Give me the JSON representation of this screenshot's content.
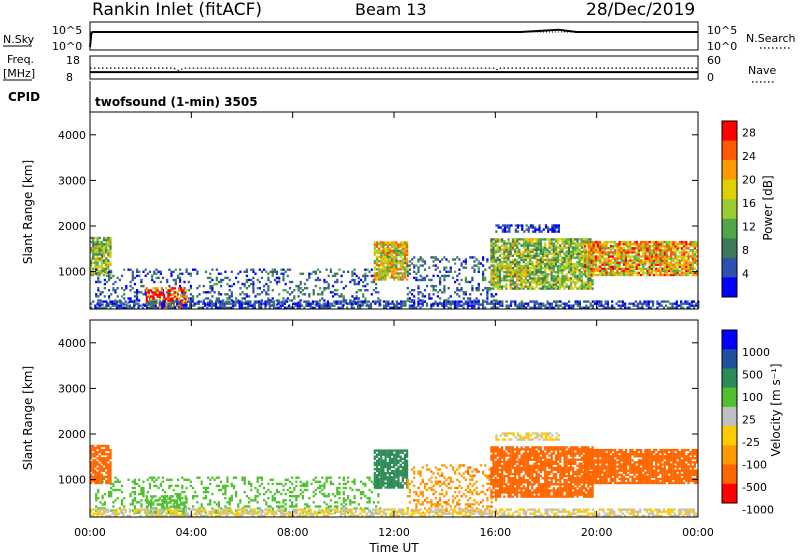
{
  "header": {
    "station": "Rankin Inlet (fitACF)",
    "beam": "Beam 13",
    "date": "28/Dec/2019"
  },
  "top_panels": {
    "nsky_label": "N.Sky",
    "nsky_ticks": [
      "10^5",
      "10^0"
    ],
    "nsearch_label": "N.Search",
    "freq_label": "Freq.",
    "freq_unit": "[MHz]",
    "freq_ticks": [
      "18",
      "8"
    ],
    "nave_label": "Nave",
    "nave_ticks": [
      "60",
      "0"
    ],
    "cpid_label": "CPID",
    "cpid_text": "twofsound (1-min) 3505"
  },
  "colors": {
    "power": [
      "#0000ff",
      "#3050b0",
      "#3d7a5a",
      "#4ea84a",
      "#9acd32",
      "#e0d000",
      "#ff9900",
      "#ff5a00",
      "#ff0000"
    ],
    "velocity": [
      "#ff0000",
      "#ff6600",
      "#ff9900",
      "#ffcc00",
      "#c0c0c0",
      "#50c030",
      "#2e8b57",
      "#2050a0",
      "#0000ff"
    ],
    "ground_scatter": "#a0a0a0"
  },
  "chart_data": [
    {
      "type": "line",
      "title": "N.Sky / N.Search",
      "xlabel": "Time UT",
      "x_ticks": [
        "00:00",
        "04:00",
        "08:00",
        "12:00",
        "16:00",
        "20:00",
        "00:00"
      ],
      "y_scale": "log",
      "ylim": [
        1,
        100000
      ],
      "series": [
        {
          "name": "N.Sky",
          "style": "solid",
          "x": [
            0,
            0.05,
            0.1,
            2,
            6,
            10,
            14,
            17,
            18.5,
            19.2,
            20,
            24
          ],
          "y": [
            1,
            1000,
            2500,
            2500,
            2600,
            2500,
            2600,
            2600,
            8000,
            2600,
            2500,
            2600
          ]
        },
        {
          "name": "N.Search",
          "style": "dotted",
          "x": [
            0,
            24
          ],
          "y": [
            2500,
            2600
          ]
        }
      ]
    },
    {
      "type": "line",
      "title": "Freq. / Nave",
      "xlabel": "Time UT",
      "x_ticks": [
        "00:00",
        "04:00",
        "08:00",
        "12:00",
        "16:00",
        "20:00",
        "00:00"
      ],
      "ylim_left": [
        8,
        18
      ],
      "ylim_right": [
        0,
        60
      ],
      "series": [
        {
          "name": "Freq.",
          "style": "solid",
          "axis": "left",
          "x": [
            0,
            24
          ],
          "y": [
            10.6,
            10.6
          ]
        },
        {
          "name": "Nave",
          "style": "dotted",
          "axis": "right",
          "x": [
            0,
            3.3,
            3.5,
            3.7,
            16,
            16.1,
            16.2,
            24
          ],
          "y": [
            28,
            28,
            20,
            28,
            28,
            22,
            28,
            28
          ]
        }
      ]
    },
    {
      "type": "heatmap",
      "title": "Power",
      "xlabel": "",
      "ylabel": "Slant Range [km]",
      "x_ticks": [
        "00:00",
        "04:00",
        "08:00",
        "12:00",
        "16:00",
        "20:00",
        "00:00"
      ],
      "y_ticks": [
        1000,
        2000,
        3000,
        4000
      ],
      "xlim": [
        0,
        24
      ],
      "ylim": [
        180,
        4500
      ],
      "colorbar": {
        "label": "Power [dB]",
        "ticks": [
          4,
          8,
          12,
          16,
          20,
          24,
          28
        ],
        "range": [
          0,
          30
        ]
      },
      "regions": [
        {
          "t0": 0.0,
          "t1": 0.8,
          "r0": 900,
          "r1": 1750,
          "val": 14,
          "density": 0.8
        },
        {
          "t0": 0.2,
          "t1": 11.5,
          "r0": 250,
          "r1": 1050,
          "val": 6,
          "density": 0.25
        },
        {
          "t0": 2.2,
          "t1": 3.8,
          "r0": 200,
          "r1": 650,
          "val": 26,
          "density": 0.6
        },
        {
          "t0": 11.2,
          "t1": 12.5,
          "r0": 800,
          "r1": 1650,
          "val": 18,
          "density": 0.85
        },
        {
          "t0": 12.5,
          "t1": 16.0,
          "r0": 250,
          "r1": 1300,
          "val": 6,
          "density": 0.25
        },
        {
          "t0": 15.8,
          "t1": 19.8,
          "r0": 600,
          "r1": 1700,
          "val": 14,
          "density": 0.8
        },
        {
          "t0": 16.0,
          "t1": 18.5,
          "r0": 1850,
          "r1": 2000,
          "val": 4,
          "density": 0.6
        },
        {
          "t0": 19.5,
          "t1": 24.0,
          "r0": 900,
          "r1": 1650,
          "val": 20,
          "density": 0.85
        },
        {
          "t0": 0.0,
          "t1": 24.0,
          "r0": 180,
          "r1": 330,
          "val": 5,
          "density": 0.6
        }
      ]
    },
    {
      "type": "heatmap",
      "title": "Velocity",
      "xlabel": "Time UT",
      "ylabel": "Slant Range [km]",
      "x_ticks": [
        "00:00",
        "04:00",
        "08:00",
        "12:00",
        "16:00",
        "20:00",
        "00:00"
      ],
      "y_ticks": [
        1000,
        2000,
        3000,
        4000
      ],
      "xlim": [
        0,
        24
      ],
      "ylim": [
        180,
        4500
      ],
      "colorbar": {
        "label": "Velocity [m s⁻¹]",
        "ticks": [
          "1000",
          "500",
          "100",
          "25",
          "-25",
          "-100",
          "-500",
          "-1000"
        ]
      },
      "regions": [
        {
          "t0": 0.0,
          "t1": 0.8,
          "r0": 900,
          "r1": 1750,
          "val": -150,
          "density": 0.8
        },
        {
          "t0": 0.2,
          "t1": 11.5,
          "r0": 250,
          "r1": 1050,
          "val": 40,
          "density": 0.25
        },
        {
          "t0": 2.2,
          "t1": 3.8,
          "r0": 200,
          "r1": 650,
          "val": 50,
          "density": 0.6
        },
        {
          "t0": 11.2,
          "t1": 12.5,
          "r0": 800,
          "r1": 1650,
          "val": 300,
          "density": 0.85
        },
        {
          "t0": 12.5,
          "t1": 16.0,
          "r0": 250,
          "r1": 1300,
          "val": -80,
          "density": 0.25
        },
        {
          "t0": 15.8,
          "t1": 19.8,
          "r0": 600,
          "r1": 1700,
          "val": -150,
          "density": 0.8
        },
        {
          "t0": 16.0,
          "t1": 18.5,
          "r0": 1850,
          "r1": 2000,
          "val": 0,
          "density": 0.6
        },
        {
          "t0": 19.5,
          "t1": 24.0,
          "r0": 900,
          "r1": 1650,
          "val": -200,
          "density": 0.85
        },
        {
          "t0": 0.0,
          "t1": 24.0,
          "r0": 180,
          "r1": 330,
          "val": 0,
          "density": 0.6
        }
      ]
    }
  ]
}
